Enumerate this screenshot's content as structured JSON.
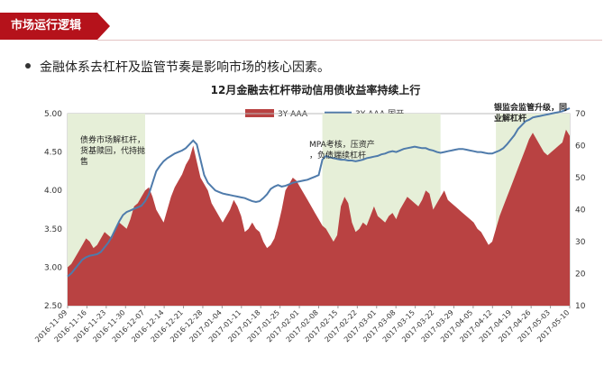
{
  "header": {
    "title": "市场运行逻辑"
  },
  "bullet": {
    "text": "金融体系去杠杆及监管节奏是影响市场的核心因素。"
  },
  "chart_data": {
    "type": "area+line",
    "title": "12月金融去杠杆带动信用债收益率持续上行",
    "legend": [
      "3Y AAA",
      "3Y AAA-国开"
    ],
    "legend_position": "top",
    "colors": {
      "area": "#b94242",
      "line": "#4f7bab",
      "shade": "#e6efd8"
    },
    "x_ticks": [
      "2016-11-09",
      "2016-11-16",
      "2016-11-23",
      "2016-11-30",
      "2016-12-07",
      "2016-12-14",
      "2016-12-21",
      "2016-12-28",
      "2017-01-04",
      "2017-01-11",
      "2017-01-18",
      "2017-01-25",
      "2017-02-01",
      "2017-02-08",
      "2017-02-15",
      "2017-02-22",
      "2017-03-01",
      "2017-03-08",
      "2017-03-15",
      "2017-03-22",
      "2017-03-29",
      "2017-04-05",
      "2017-04-12",
      "2017-04-19",
      "2017-04-26",
      "2017-05-03",
      "2017-05-10"
    ],
    "y_left": {
      "range": [
        2.5,
        5.0
      ],
      "ticks": [
        "2.50",
        "3.00",
        "3.50",
        "4.00",
        "4.50",
        "5.00"
      ]
    },
    "y_right": {
      "range": [
        10,
        70
      ],
      "ticks": [
        "10",
        "20",
        "30",
        "40",
        "50",
        "60",
        "70"
      ]
    },
    "shaded_regions": [
      {
        "from": 0,
        "to": 21,
        "label": "债券市场解杠杆，货基赎回，代持抛售"
      },
      {
        "from": 69,
        "to": 101,
        "label": "MPA考核，压资产，负债端续杠杆"
      },
      {
        "from": 116,
        "to": 136,
        "label": "银监会监管升级，同业解杠杆"
      }
    ],
    "series": [
      {
        "name": "3Y AAA",
        "axis": "right",
        "values": [
          22,
          23,
          25,
          27,
          29,
          31,
          30,
          28,
          29,
          31,
          33,
          32,
          31,
          34,
          36,
          35,
          34,
          37,
          41,
          42,
          44,
          46,
          47,
          44,
          40,
          38,
          36,
          40,
          44,
          47,
          49,
          51,
          54,
          56,
          60,
          55,
          50,
          48,
          46,
          42,
          40,
          38,
          36,
          38,
          40,
          43,
          41,
          38,
          33,
          34,
          36,
          34,
          33,
          30,
          28,
          29,
          31,
          35,
          40,
          46,
          48,
          50,
          49,
          47,
          45,
          43,
          41,
          39,
          37,
          35,
          34,
          32,
          30,
          32,
          41,
          44,
          42,
          36,
          33,
          34,
          36,
          35,
          38,
          41,
          38,
          37,
          36,
          38,
          39,
          37,
          40,
          42,
          44,
          43,
          42,
          41,
          43,
          46,
          45,
          40,
          42,
          44,
          46,
          43,
          42,
          41,
          40,
          39,
          38,
          37,
          36,
          34,
          33,
          31,
          29,
          30,
          34,
          38,
          41,
          44,
          47,
          50,
          53,
          56,
          59,
          62,
          64,
          62,
          60,
          58,
          57,
          58,
          59,
          60,
          61,
          65,
          63
        ]
      },
      {
        "name": "3Y AAA-国开",
        "axis": "left",
        "values": [
          2.88,
          2.92,
          2.98,
          3.04,
          3.1,
          3.13,
          3.15,
          3.16,
          3.17,
          3.2,
          3.26,
          3.32,
          3.4,
          3.5,
          3.6,
          3.68,
          3.72,
          3.74,
          3.76,
          3.78,
          3.8,
          3.86,
          3.95,
          4.1,
          4.25,
          4.32,
          4.38,
          4.42,
          4.45,
          4.48,
          4.5,
          4.52,
          4.55,
          4.6,
          4.65,
          4.6,
          4.4,
          4.2,
          4.1,
          4.05,
          4.0,
          3.98,
          3.96,
          3.95,
          3.94,
          3.93,
          3.92,
          3.91,
          3.9,
          3.88,
          3.86,
          3.85,
          3.86,
          3.9,
          3.95,
          4.02,
          4.05,
          4.07,
          4.05,
          4.06,
          4.08,
          4.1,
          4.11,
          4.12,
          4.13,
          4.14,
          4.16,
          4.18,
          4.2,
          4.4,
          4.45,
          4.43,
          4.42,
          4.41,
          4.4,
          4.4,
          4.39,
          4.39,
          4.38,
          4.39,
          4.4,
          4.42,
          4.43,
          4.44,
          4.45,
          4.47,
          4.48,
          4.5,
          4.51,
          4.5,
          4.52,
          4.54,
          4.55,
          4.56,
          4.57,
          4.56,
          4.55,
          4.55,
          4.53,
          4.52,
          4.5,
          4.49,
          4.5,
          4.51,
          4.52,
          4.53,
          4.54,
          4.54,
          4.53,
          4.52,
          4.51,
          4.5,
          4.5,
          4.49,
          4.48,
          4.48,
          4.5,
          4.52,
          4.55,
          4.6,
          4.66,
          4.72,
          4.8,
          4.85,
          4.9,
          4.92,
          4.95,
          4.96,
          4.97,
          4.98,
          4.99,
          5.0,
          5.01,
          5.02,
          5.03,
          5.05,
          5.07
        ]
      }
    ]
  }
}
